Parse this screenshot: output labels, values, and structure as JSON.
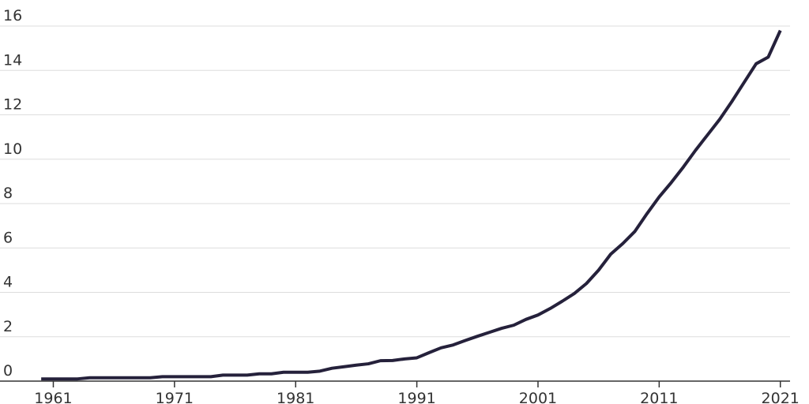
{
  "chart_data": {
    "type": "line",
    "x": [
      1960,
      1961,
      1962,
      1963,
      1964,
      1965,
      1966,
      1967,
      1968,
      1969,
      1970,
      1971,
      1972,
      1973,
      1974,
      1975,
      1976,
      1977,
      1978,
      1979,
      1980,
      1981,
      1982,
      1983,
      1984,
      1985,
      1986,
      1987,
      1988,
      1989,
      1990,
      1991,
      1992,
      1993,
      1994,
      1995,
      1996,
      1997,
      1998,
      1999,
      2000,
      2001,
      2002,
      2003,
      2004,
      2005,
      2006,
      2007,
      2008,
      2009,
      2010,
      2011,
      2012,
      2013,
      2014,
      2015,
      2016,
      2017,
      2018,
      2019,
      2020,
      2021
    ],
    "series": [
      {
        "color": "#25213b",
        "values": [
          0.1,
          0.1,
          0.1,
          0.1,
          0.15,
          0.15,
          0.15,
          0.15,
          0.15,
          0.15,
          0.2,
          0.2,
          0.2,
          0.2,
          0.2,
          0.27,
          0.27,
          0.27,
          0.33,
          0.33,
          0.4,
          0.4,
          0.4,
          0.45,
          0.58,
          0.65,
          0.72,
          0.78,
          0.92,
          0.93,
          1.0,
          1.05,
          1.28,
          1.5,
          1.63,
          1.83,
          2.02,
          2.2,
          2.38,
          2.52,
          2.78,
          2.98,
          3.27,
          3.6,
          3.95,
          4.4,
          5.0,
          5.72,
          6.2,
          6.75,
          7.55,
          8.3,
          8.95,
          9.65,
          10.4,
          11.1,
          11.8,
          12.6,
          13.45,
          14.3,
          14.6,
          15.8
        ]
      }
    ],
    "xlim": [
      1956.6,
      2021.8
    ],
    "xticks": [
      1961,
      1971,
      1981,
      1991,
      2001,
      2011,
      2021
    ],
    "ylim": [
      0,
      16
    ],
    "yticks": [
      0,
      2,
      4,
      6,
      8,
      10,
      12,
      14,
      16
    ],
    "grid": true
  }
}
